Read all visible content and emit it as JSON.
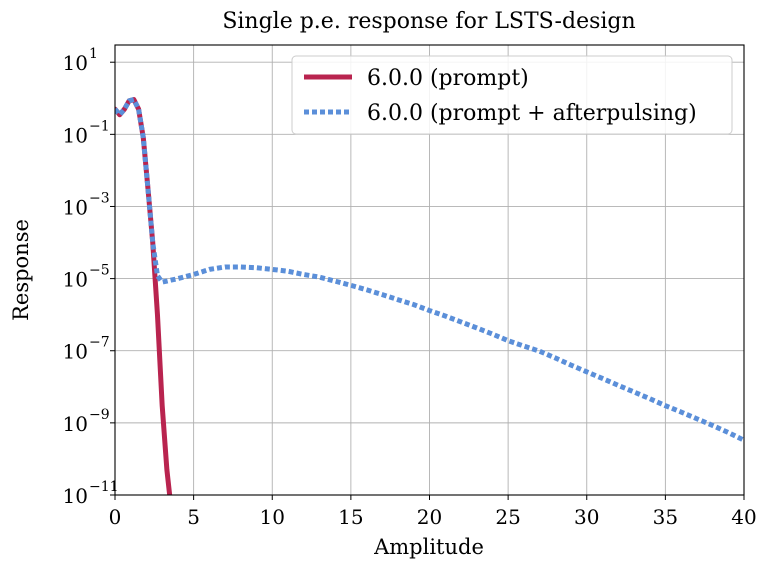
{
  "chart_data": {
    "type": "line",
    "title": "Single p.e. response for LSTS-design",
    "xlabel": "Amplitude",
    "ylabel": "Response",
    "xlim": [
      0,
      40
    ],
    "ylim": [
      1e-11,
      30
    ],
    "yscale": "log",
    "grid": true,
    "legend_position": "top-right",
    "x_ticks": [
      0,
      5,
      10,
      15,
      20,
      25,
      30,
      35,
      40
    ],
    "y_ticks": [
      {
        "value": 1e-11,
        "base": "10",
        "exp": "−11"
      },
      {
        "value": 1e-09,
        "base": "10",
        "exp": "−9"
      },
      {
        "value": 1e-07,
        "base": "10",
        "exp": "−7"
      },
      {
        "value": 1e-05,
        "base": "10",
        "exp": "−5"
      },
      {
        "value": 0.001,
        "base": "10",
        "exp": "−3"
      },
      {
        "value": 0.1,
        "base": "10",
        "exp": "−1"
      },
      {
        "value": 10,
        "base": "10",
        "exp": "1"
      }
    ],
    "series": [
      {
        "name": "6.0.0 (prompt)",
        "color": "#b9244f",
        "style": "solid",
        "x": [
          0,
          0.3,
          0.6,
          0.9,
          1.2,
          1.5,
          1.8,
          2.1,
          2.4,
          2.7,
          3.0,
          3.3,
          3.5
        ],
        "y": [
          0.5,
          0.35,
          0.5,
          0.85,
          0.92,
          0.5,
          0.08,
          0.003,
          0.0001,
          1e-06,
          3e-09,
          5e-11,
          8e-12
        ]
      },
      {
        "name": "6.0.0 (prompt + afterpulsing)",
        "color": "#5b8fd9",
        "style": "dotted",
        "x": [
          0,
          0.3,
          0.6,
          0.9,
          1.2,
          1.5,
          1.8,
          2.1,
          2.4,
          2.7,
          3.0,
          4,
          5,
          6,
          7,
          8,
          9,
          10,
          11,
          12,
          13,
          14,
          15,
          16,
          17,
          18,
          19,
          20,
          21,
          22,
          23,
          24,
          25,
          26,
          27,
          28,
          29,
          30,
          31,
          32,
          33,
          34,
          35,
          36,
          37,
          38,
          39,
          40
        ],
        "y": [
          0.5,
          0.35,
          0.5,
          0.85,
          0.92,
          0.5,
          0.08,
          0.003,
          0.0001,
          1.2e-05,
          8e-06,
          1e-05,
          1.3e-05,
          1.8e-05,
          2.1e-05,
          2.1e-05,
          2e-05,
          1.8e-05,
          1.6e-05,
          1.3e-05,
          1.1e-05,
          8.5e-06,
          6.5e-06,
          4.9e-06,
          3.6e-06,
          2.6e-06,
          1.9e-06,
          1.3e-06,
          9.2e-07,
          6.3e-07,
          4.3e-07,
          2.9e-07,
          1.9e-07,
          1.35e-07,
          9.7e-08,
          6.3e-08,
          4e-08,
          2.6e-08,
          1.7e-08,
          1.1e-08,
          7.2e-09,
          4.7e-09,
          3e-09,
          2e-09,
          1.3e-09,
          8.5e-10,
          5.4e-10,
          3.3e-10
        ]
      }
    ]
  }
}
